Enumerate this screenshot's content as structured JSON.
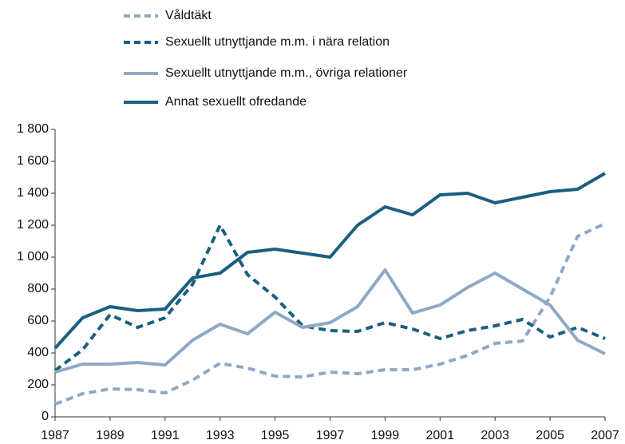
{
  "chart_data": {
    "type": "line",
    "x": [
      1987,
      1988,
      1989,
      1990,
      1991,
      1992,
      1993,
      1994,
      1995,
      1996,
      1997,
      1998,
      1999,
      2000,
      2001,
      2002,
      2003,
      2004,
      2005,
      2006,
      2007
    ],
    "series": [
      {
        "name": "Våldtäkt",
        "color": "#8fa9c3",
        "style": "dashed",
        "values": [
          80,
          145,
          175,
          170,
          150,
          230,
          335,
          305,
          255,
          250,
          280,
          270,
          295,
          295,
          330,
          385,
          460,
          475,
          750,
          1130,
          1210
        ]
      },
      {
        "name": "Sexuellt utnyttjande m.m. i nära relation",
        "color": "#1a5f80",
        "style": "dashed",
        "values": [
          290,
          420,
          640,
          560,
          620,
          830,
          1200,
          890,
          750,
          570,
          540,
          535,
          590,
          550,
          490,
          540,
          570,
          610,
          500,
          560,
          490
        ]
      },
      {
        "name": "Sexuellt utnyttjande m.m., övriga relationer",
        "color": "#8fa9c3",
        "style": "solid",
        "values": [
          280,
          330,
          330,
          340,
          325,
          480,
          580,
          520,
          655,
          560,
          590,
          690,
          920,
          650,
          700,
          810,
          900,
          800,
          700,
          480,
          395
        ]
      },
      {
        "name": "Annat sexuellt ofredande",
        "color": "#1a5f80",
        "style": "solid",
        "values": [
          430,
          620,
          690,
          665,
          675,
          870,
          900,
          1030,
          1050,
          1025,
          1000,
          1200,
          1315,
          1265,
          1390,
          1400,
          1340,
          1375,
          1410,
          1425,
          1525
        ]
      }
    ],
    "xlim": [
      1987,
      2007
    ],
    "xticks": [
      1987,
      1989,
      1991,
      1993,
      1995,
      1997,
      1999,
      2001,
      2003,
      2005,
      2007
    ],
    "ylim": [
      0,
      1800
    ],
    "yticks": [
      0,
      200,
      400,
      600,
      800,
      {
        "value": 1000,
        "label": "1 000"
      },
      {
        "value": 1200,
        "label": "1 200"
      },
      {
        "value": 1400,
        "label": "1 400"
      },
      {
        "value": 1600,
        "label": "1 600"
      },
      {
        "value": 1800,
        "label": "1 800"
      }
    ],
    "legend": "top"
  }
}
